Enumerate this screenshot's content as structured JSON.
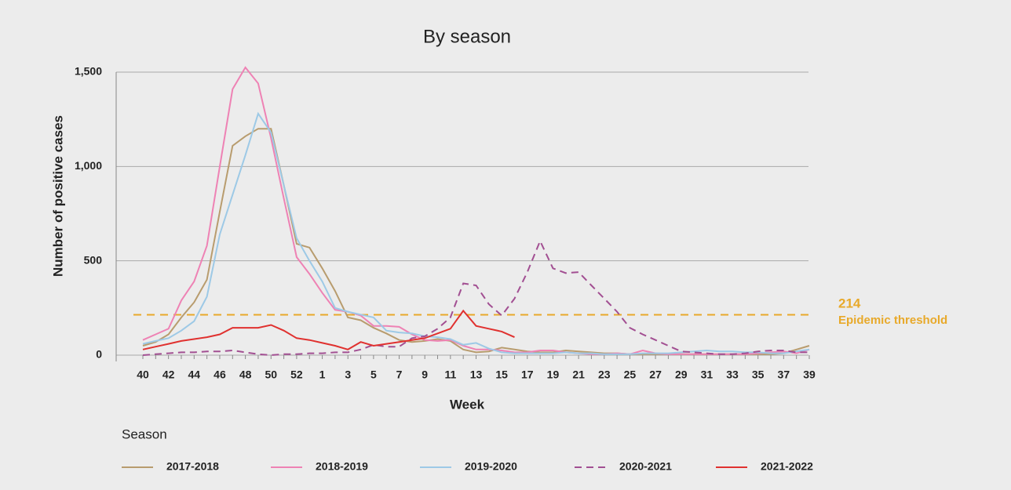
{
  "chart_data": {
    "type": "line",
    "title": "By season",
    "y_label": "Number of positive cases",
    "x_label": "Week",
    "categories": [
      "40",
      null,
      "42",
      null,
      "44",
      null,
      "46",
      null,
      "48",
      null,
      "50",
      null,
      "52",
      null,
      "1",
      null,
      "3",
      null,
      "5",
      null,
      "7",
      null,
      "9",
      null,
      "11",
      null,
      "13",
      null,
      "15",
      null,
      "17",
      null,
      "19",
      null,
      "21",
      null,
      "23",
      null,
      "25",
      null,
      "27",
      null,
      "29",
      null,
      "31",
      null,
      "33",
      null,
      "35",
      null,
      "37",
      null,
      "39"
    ],
    "series": [
      {
        "name": "2017-2018",
        "color": "#b89c6e",
        "dash": false,
        "values": [
          50,
          70,
          110,
          200,
          280,
          400,
          760,
          1110,
          1160,
          1200,
          1200,
          900,
          590,
          570,
          460,
          340,
          200,
          185,
          145,
          115,
          80,
          70,
          75,
          85,
          75,
          30,
          15,
          20,
          40,
          30,
          20,
          15,
          15,
          25,
          20,
          15,
          10,
          10,
          5,
          5,
          5,
          5,
          5,
          5,
          5,
          5,
          5,
          5,
          5,
          5,
          10,
          30,
          50
        ]
      },
      {
        "name": "2018-2019",
        "color": "#ee82b4",
        "dash": false,
        "values": [
          80,
          110,
          140,
          290,
          390,
          580,
          1000,
          1410,
          1525,
          1440,
          1150,
          830,
          520,
          430,
          330,
          240,
          230,
          210,
          155,
          155,
          150,
          110,
          80,
          75,
          80,
          50,
          30,
          30,
          25,
          15,
          15,
          25,
          25,
          15,
          10,
          5,
          5,
          10,
          5,
          25,
          10,
          5,
          5,
          5,
          5,
          5,
          5,
          5,
          10,
          15,
          20,
          10,
          30
        ]
      },
      {
        "name": "2019-2020",
        "color": "#9dc9e6",
        "dash": false,
        "values": [
          60,
          75,
          90,
          130,
          180,
          310,
          640,
          850,
          1060,
          1280,
          1180,
          900,
          620,
          500,
          390,
          250,
          230,
          215,
          200,
          130,
          120,
          115,
          100,
          95,
          85,
          55,
          65,
          35,
          15,
          10,
          10,
          10,
          10,
          15,
          10,
          10,
          5,
          5,
          5,
          10,
          10,
          10,
          15,
          20,
          25,
          20,
          20,
          15,
          15,
          10,
          10,
          20,
          30
        ]
      },
      {
        "name": "2020-2021",
        "color": "#a24f92",
        "dash": true,
        "values": [
          0,
          5,
          10,
          15,
          15,
          20,
          20,
          25,
          15,
          5,
          0,
          5,
          5,
          10,
          10,
          15,
          15,
          30,
          55,
          45,
          45,
          90,
          100,
          140,
          200,
          380,
          370,
          270,
          210,
          300,
          440,
          605,
          460,
          435,
          440,
          370,
          300,
          230,
          145,
          110,
          80,
          50,
          20,
          15,
          10,
          5,
          5,
          10,
          20,
          25,
          25,
          15,
          15
        ]
      },
      {
        "name": "2021-2022",
        "color": "#e0312f",
        "dash": false,
        "values": [
          30,
          45,
          60,
          75,
          85,
          95,
          110,
          145,
          145,
          145,
          160,
          130,
          90,
          80,
          65,
          50,
          30,
          70,
          50,
          60,
          70,
          80,
          90,
          115,
          140,
          235,
          155,
          140,
          125,
          95,
          null,
          null,
          null,
          null,
          null,
          null,
          null,
          null,
          null,
          null,
          null,
          null,
          null,
          null,
          null,
          null,
          null,
          null,
          null,
          null,
          null,
          null,
          null
        ]
      }
    ],
    "ylim": [
      0,
      1500
    ],
    "yticks": [
      0,
      500,
      {
        "value": 1000,
        "label": "1,000"
      },
      {
        "value": 1500,
        "label": "1,500"
      }
    ],
    "grid": true,
    "threshold": {
      "value": 214,
      "label": "Epidemic threshold",
      "color": "#e8a92a"
    },
    "legend": "bottom",
    "legend_title": "Season"
  }
}
